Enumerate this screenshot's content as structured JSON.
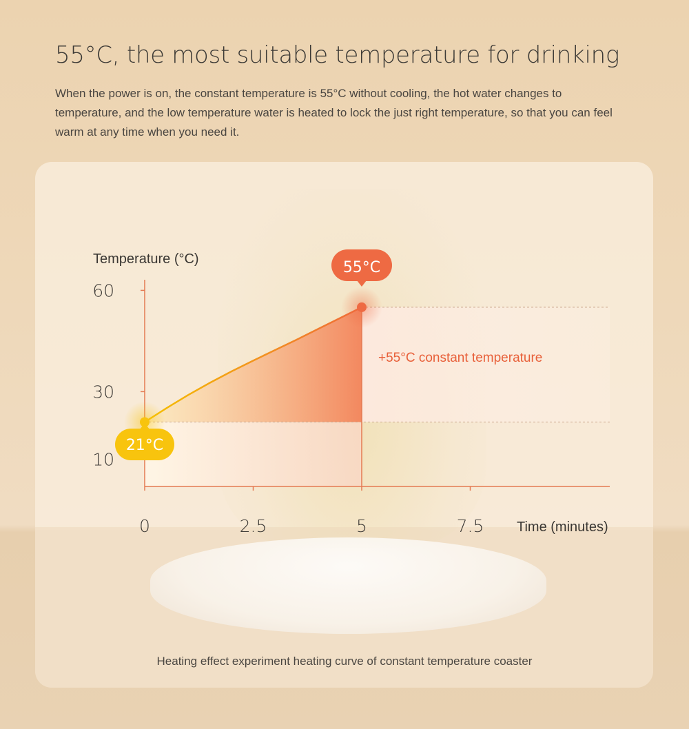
{
  "headline": "55°C, the most suitable temperature for drinking",
  "description": "When the power is on, the constant temperature is 55°C without cooling, the hot water changes to temperature, and the low temperature water is heated to lock the just right temperature, so that you can feel warm at any time when you need it.",
  "caption": "Heating effect experiment heating curve of constant temperature coaster",
  "colors": {
    "curve_start": "#f5c000",
    "curve_end": "#ef6a3a",
    "axis": "#e47a52",
    "label_text": "#e8603a",
    "badge_hot": "#ee6a43",
    "badge_cold": "#f8c40e"
  },
  "chart_data": {
    "type": "line",
    "ylabel": "Temperature (°C)",
    "xlabel": "Time (minutes)",
    "x_ticks": [
      {
        "value": 0,
        "label": "0"
      },
      {
        "value": 2.5,
        "label": "2.5"
      },
      {
        "value": 5,
        "label": "5"
      },
      {
        "value": 7.5,
        "label": "7.5"
      }
    ],
    "y_ticks": [
      {
        "value": 10,
        "label": "10"
      },
      {
        "value": 30,
        "label": "30"
      },
      {
        "value": 60,
        "label": "60"
      }
    ],
    "series": [
      {
        "x": [
          0,
          0.5,
          1,
          1.5,
          2,
          2.5,
          3,
          3.5,
          4,
          4.5,
          5,
          7.5
        ],
        "y": [
          21,
          25.1,
          29,
          32.6,
          36,
          39.2,
          42.3,
          45.4,
          48.6,
          51.8,
          55,
          55
        ]
      }
    ],
    "points": [
      {
        "x": 0,
        "y": 21,
        "label": "21°C"
      },
      {
        "x": 5,
        "y": 55,
        "label": "55°C"
      }
    ],
    "annotation": "+55°C constant temperature"
  }
}
